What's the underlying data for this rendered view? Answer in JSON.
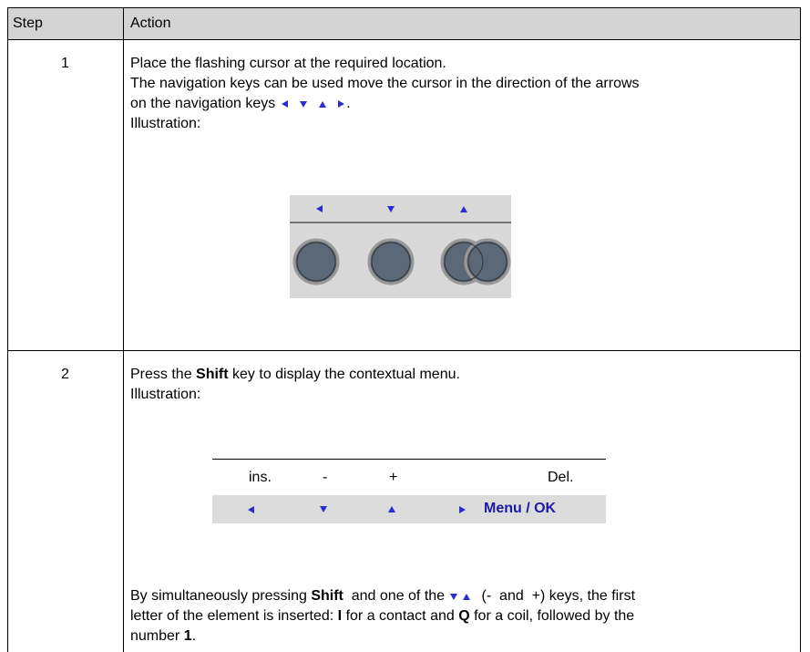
{
  "table": {
    "header": [
      "Step",
      "Action"
    ],
    "rows": [
      {
        "step": "1",
        "lines": [
          [
            "Place the flashing cursor at the required location."
          ],
          [
            "The navigation keys can be used move the cursor in the direction of the arrows"
          ],
          [
            "on the navigation keys",
            "."
          ],
          [
            "Illustration:"
          ]
        ]
      },
      {
        "step": "2",
        "lines": [
          [
            "Press the ",
            "Shift",
            " key to display the contextual menu."
          ],
          [
            "Illustration:"
          ]
        ],
        "illustration": {
          "labels": [
            "ins.",
            "-",
            "+",
            "Del."
          ],
          "menu": "Menu / OK"
        },
        "after": [
          [
            "By simultaneously pressing ",
            "Shift",
            "  and one of the",
            " (-  and  +) keys, the first"
          ],
          [
            "letter of the element is inserted: ",
            "I",
            " for a contact and ",
            "Q",
            " for a coil, followed by the"
          ],
          [
            "number ",
            "1",
            "."
          ]
        ]
      }
    ]
  }
}
